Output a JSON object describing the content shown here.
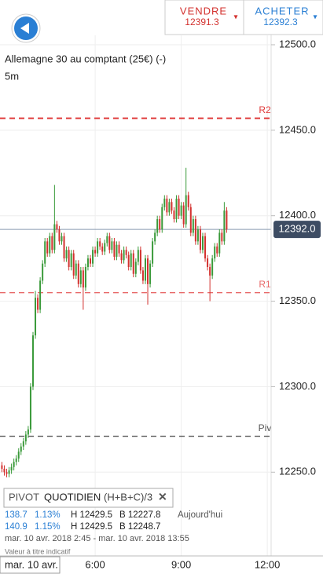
{
  "header": {
    "sell_label": "VENDRE",
    "sell_price": "12391.3",
    "buy_label": "ACHETER",
    "buy_price": "12392.3",
    "arrow": "▾"
  },
  "instrument": {
    "name": "Allemagne 30 au comptant (25€) (-)",
    "interval": "5m"
  },
  "chart_data": {
    "type": "candlestick",
    "x": [
      165,
      170,
      175,
      180,
      185,
      190,
      195,
      200,
      205,
      210,
      215,
      220,
      225,
      230,
      235,
      240,
      245,
      250,
      255,
      260,
      265,
      270,
      275,
      280,
      285,
      290,
      295,
      300,
      305,
      310,
      315,
      320,
      325,
      330,
      335,
      340,
      345,
      350,
      355,
      360,
      365,
      370,
      375,
      380,
      385,
      390,
      395,
      400,
      405,
      410,
      415,
      420,
      425,
      430,
      435,
      440,
      445,
      450,
      455,
      460,
      465,
      470,
      475,
      480,
      485,
      490,
      495,
      500,
      505,
      510,
      515,
      520,
      525,
      530,
      535,
      540,
      545,
      550,
      555,
      560,
      565,
      570,
      575,
      580,
      585,
      590,
      595,
      600,
      605,
      610,
      615,
      620,
      625,
      630,
      635
    ],
    "open": [
      12254,
      12252,
      12250,
      12249,
      12251,
      12253,
      12256,
      12258,
      12262,
      12265,
      12268,
      12272,
      12275,
      12300,
      12330,
      12352,
      12345,
      12362,
      12372,
      12385,
      12378,
      12388,
      12380,
      12395,
      12392,
      12385,
      12388,
      12375,
      12380,
      12370,
      12378,
      12365,
      12372,
      12360,
      12368,
      12358,
      12370,
      12375,
      12372,
      12380,
      12378,
      12385,
      12382,
      12379,
      12384,
      12388,
      12380,
      12385,
      12376,
      12383,
      12378,
      12374,
      12380,
      12377,
      12370,
      12378,
      12366,
      12373,
      12380,
      12368,
      12362,
      12375,
      12360,
      12372,
      12385,
      12390,
      12398,
      12392,
      12405,
      12410,
      12402,
      12408,
      12403,
      12398,
      12410,
      12400,
      12406,
      12395,
      12412,
      12405,
      12390,
      12398,
      12385,
      12392,
      12380,
      12388,
      12375,
      12370,
      12365,
      12375,
      12382,
      12378,
      12390,
      12385,
      12403
    ],
    "high": [
      12256,
      12254,
      12252,
      12253,
      12255,
      12258,
      12260,
      12264,
      12267,
      12270,
      12274,
      12277,
      12302,
      12332,
      12356,
      12354,
      12364,
      12374,
      12387,
      12387,
      12390,
      12390,
      12418,
      12397,
      12394,
      12390,
      12390,
      12382,
      12382,
      12380,
      12380,
      12374,
      12374,
      12370,
      12370,
      12372,
      12377,
      12377,
      12382,
      12382,
      12387,
      12387,
      12384,
      12386,
      12390,
      12390,
      12387,
      12387,
      12385,
      12385,
      12380,
      12382,
      12382,
      12379,
      12380,
      12380,
      12375,
      12382,
      12382,
      12370,
      12377,
      12377,
      12374,
      12387,
      12392,
      12400,
      12400,
      12407,
      12412,
      12412,
      12410,
      12410,
      12405,
      12412,
      12412,
      12408,
      12408,
      12428,
      12414,
      12407,
      12400,
      12400,
      12394,
      12394,
      12390,
      12390,
      12377,
      12372,
      12377,
      12384,
      12384,
      12392,
      12392,
      12408,
      12405
    ],
    "low": [
      12250,
      12248,
      12247,
      12247,
      12249,
      12251,
      12254,
      12256,
      12260,
      12263,
      12266,
      12270,
      12273,
      12298,
      12328,
      12343,
      12343,
      12360,
      12370,
      12376,
      12376,
      12378,
      12378,
      12390,
      12383,
      12383,
      12373,
      12373,
      12368,
      12368,
      12363,
      12363,
      12358,
      12358,
      12345,
      12356,
      12368,
      12370,
      12370,
      12376,
      12376,
      12380,
      12377,
      12377,
      12382,
      12378,
      12378,
      12374,
      12374,
      12376,
      12372,
      12372,
      12375,
      12368,
      12368,
      12364,
      12364,
      12371,
      12366,
      12360,
      12360,
      12348,
      12358,
      12370,
      12383,
      12388,
      12390,
      12390,
      12403,
      12400,
      12400,
      12401,
      12396,
      12396,
      12398,
      12398,
      12393,
      12393,
      12403,
      12388,
      12388,
      12383,
      12383,
      12378,
      12378,
      12373,
      12368,
      12350,
      12363,
      12373,
      12376,
      12376,
      12383,
      12383,
      12390
    ],
    "close": [
      12252,
      12250,
      12249,
      12251,
      12253,
      12256,
      12258,
      12262,
      12265,
      12268,
      12272,
      12275,
      12300,
      12330,
      12352,
      12345,
      12362,
      12372,
      12385,
      12378,
      12388,
      12380,
      12395,
      12392,
      12385,
      12388,
      12375,
      12380,
      12370,
      12378,
      12365,
      12372,
      12360,
      12368,
      12358,
      12370,
      12375,
      12372,
      12380,
      12378,
      12385,
      12382,
      12379,
      12384,
      12388,
      12380,
      12385,
      12376,
      12383,
      12378,
      12374,
      12380,
      12377,
      12370,
      12378,
      12366,
      12373,
      12380,
      12368,
      12362,
      12375,
      12360,
      12372,
      12385,
      12390,
      12398,
      12392,
      12405,
      12410,
      12402,
      12408,
      12403,
      12398,
      12410,
      12400,
      12406,
      12395,
      12412,
      12405,
      12390,
      12398,
      12385,
      12392,
      12380,
      12388,
      12375,
      12370,
      12365,
      12375,
      12382,
      12378,
      12390,
      12385,
      12403,
      12392
    ],
    "up_color": "#3a9a3a",
    "down_color": "#d3312e",
    "xlim": [
      161,
      728
    ],
    "ylim": [
      12201,
      12505.5
    ],
    "xticks": [
      {
        "value": 360,
        "label": "6:00"
      },
      {
        "value": 540,
        "label": "9:00"
      },
      {
        "value": 720,
        "label": "12:00"
      }
    ],
    "yticks": [
      {
        "value": 12250,
        "label": "12250.0"
      },
      {
        "value": 12300,
        "label": "12300.0"
      },
      {
        "value": 12350,
        "label": "12350.0"
      },
      {
        "value": 12400,
        "label": "12400.0"
      },
      {
        "value": 12450,
        "label": "12450.0"
      },
      {
        "value": 12500,
        "label": "12500.0"
      }
    ],
    "grid": true,
    "levels": [
      {
        "name": "R2",
        "value": 12457,
        "color": "#e03a3a"
      },
      {
        "name": "R1",
        "value": 12355,
        "color": "#e86a6a"
      },
      {
        "name": "Piv",
        "value": 12271,
        "color": "#555555"
      }
    ],
    "current_price": {
      "value": 12392,
      "label": "12392.0"
    },
    "date_label": "mar. 10 avr."
  },
  "pivot_panel": {
    "title": "PIVOT",
    "kind": "QUOTIDIEN",
    "formula": "(H+B+C)/3",
    "close": "✕",
    "rows": [
      [
        "138.7",
        "1.13%",
        "H 12429.5",
        "B 12227.8",
        "Aujourd'hui"
      ],
      [
        "140.9",
        "1.15%",
        "H 12429.5",
        "B 12248.7"
      ]
    ],
    "range": "mar. 10 avr. 2018 2:45 - mar. 10 avr. 2018 13:55",
    "note": "Valeur à titre indicatif"
  }
}
